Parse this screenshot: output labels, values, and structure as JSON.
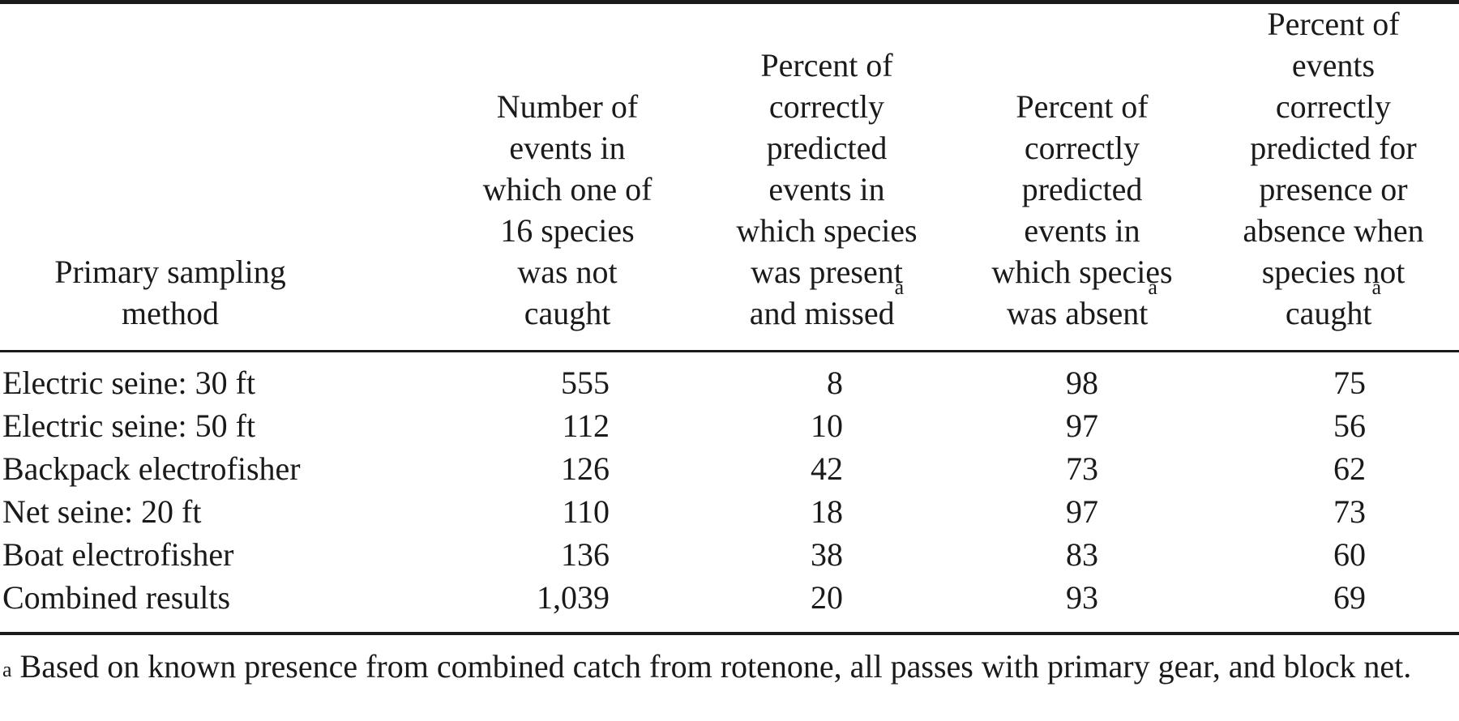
{
  "table": {
    "headers": [
      "Primary sampling\nmethod",
      "Number of\nevents in\nwhich one of\n16 species\nwas not\ncaught",
      "Percent of\ncorrectly\npredicted\nevents in\nwhich species\nwas present\nand missed",
      "Percent of\ncorrectly\npredicted\nevents in\nwhich species\nwas absent",
      "Percent of\nevents\ncorrectly\npredicted for\npresence or\nabsence when\nspecies not\ncaught"
    ],
    "header_marks": [
      "",
      "",
      "a",
      "a",
      "a"
    ],
    "rows": [
      [
        "Electric seine: 30 ft",
        "555",
        "8",
        "98",
        "75"
      ],
      [
        "Electric seine: 50 ft",
        "112",
        "10",
        "97",
        "56"
      ],
      [
        "Backpack electrofisher",
        "126",
        "42",
        "73",
        "62"
      ],
      [
        "Net seine: 20 ft",
        "110",
        "18",
        "97",
        "73"
      ],
      [
        "Boat electrofisher",
        "136",
        "38",
        "83",
        "60"
      ],
      [
        "Combined results",
        "1,039",
        "20",
        "93",
        "69"
      ]
    ]
  },
  "footnote": {
    "mark": "a",
    "text": "Based on known presence from combined catch from rotenone, all passes with primary gear, and block net."
  }
}
